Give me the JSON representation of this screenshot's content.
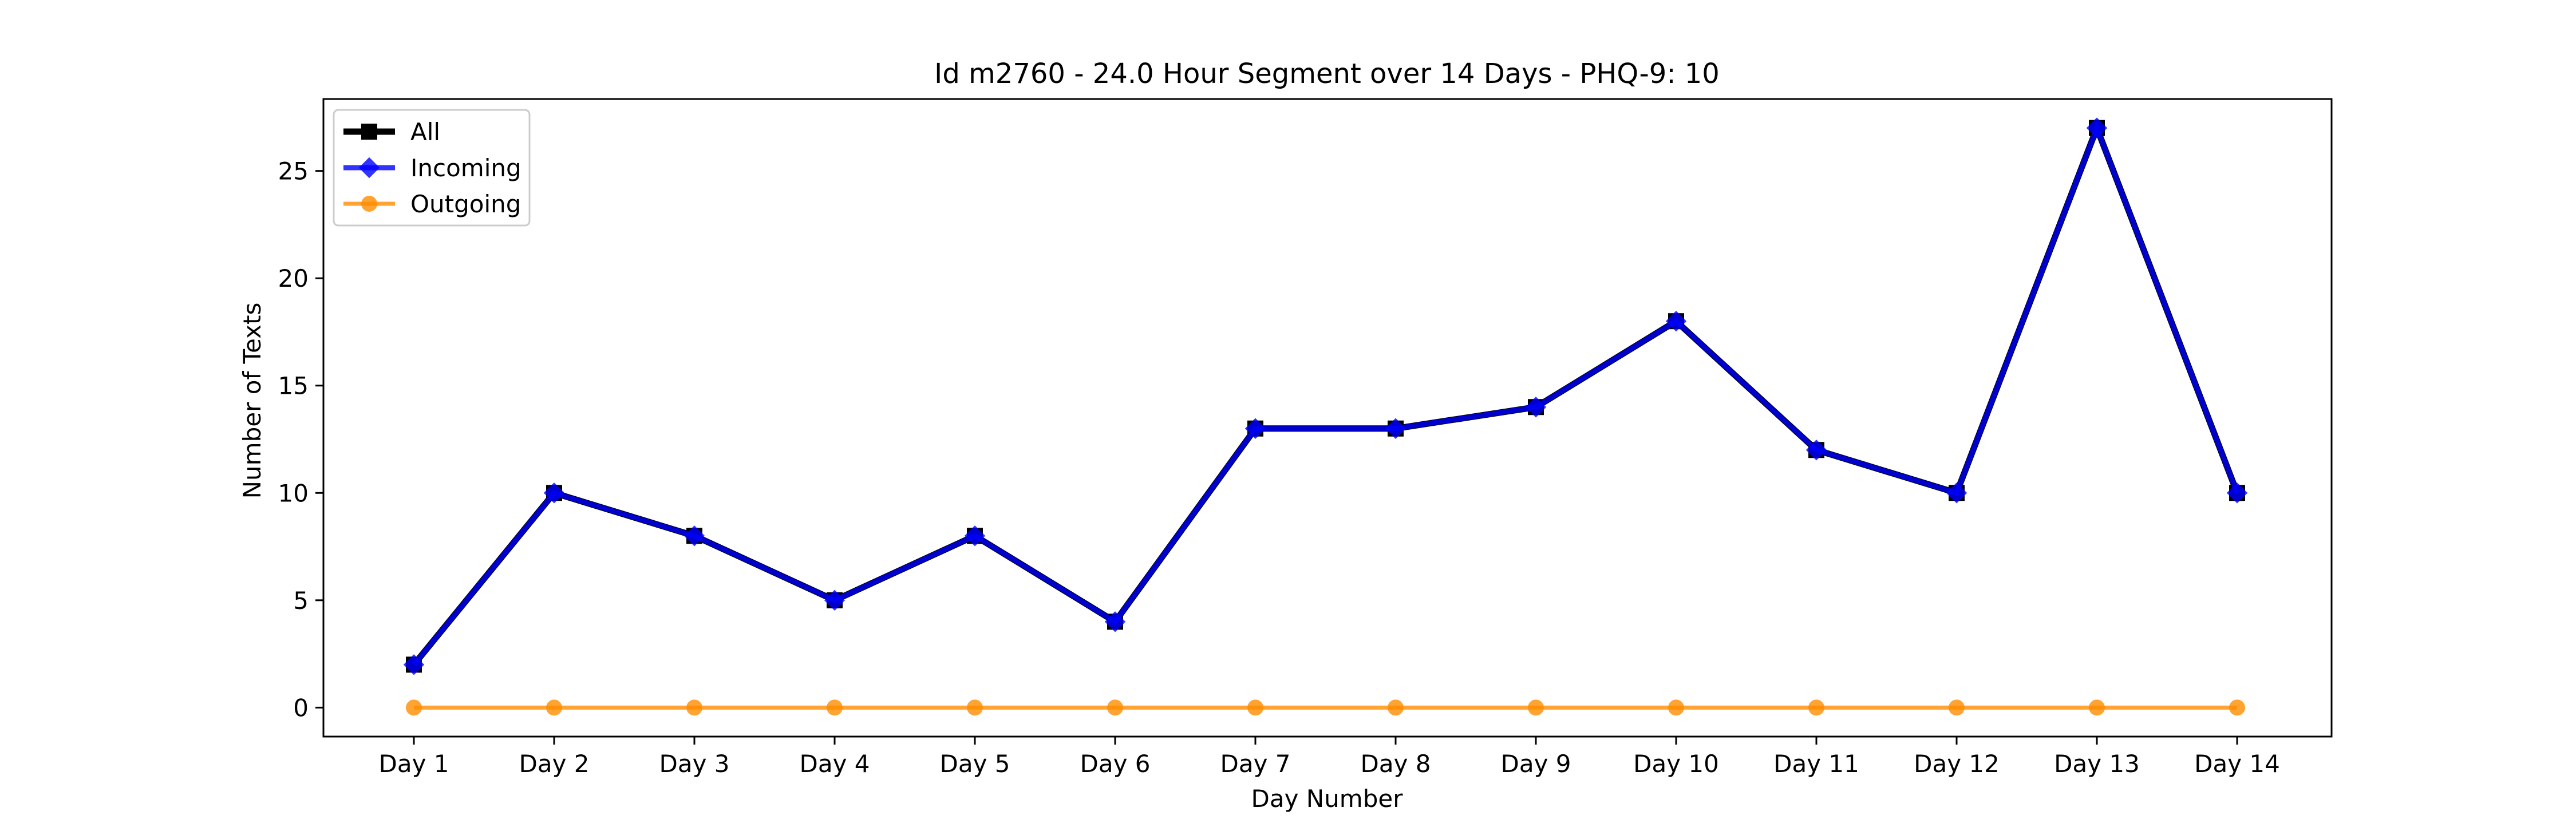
{
  "chart_data": {
    "type": "line",
    "title": "Id m2760 - 24.0 Hour Segment over 14 Days - PHQ-9: 10",
    "xlabel": "Day Number",
    "ylabel": "Number of Texts",
    "categories": [
      "Day 1",
      "Day 2",
      "Day 3",
      "Day 4",
      "Day 5",
      "Day 6",
      "Day 7",
      "Day 8",
      "Day 9",
      "Day 10",
      "Day 11",
      "Day 12",
      "Day 13",
      "Day 14"
    ],
    "yticks": [
      0,
      5,
      10,
      15,
      20,
      25
    ],
    "ylim": [
      -1.35,
      28.35
    ],
    "grid": false,
    "legend_position": "upper-left",
    "series": [
      {
        "name": "All",
        "color": "#000000",
        "marker": "square",
        "values": [
          2,
          10,
          8,
          5,
          8,
          4,
          13,
          13,
          14,
          18,
          12,
          10,
          27,
          10
        ]
      },
      {
        "name": "Incoming",
        "color": "#0000ff",
        "marker": "diamond",
        "values": [
          2,
          10,
          8,
          5,
          8,
          4,
          13,
          13,
          14,
          18,
          12,
          10,
          27,
          10
        ]
      },
      {
        "name": "Outgoing",
        "color": "#ff8c00",
        "marker": "circle",
        "values": [
          0,
          0,
          0,
          0,
          0,
          0,
          0,
          0,
          0,
          0,
          0,
          0,
          0,
          0
        ]
      }
    ]
  }
}
